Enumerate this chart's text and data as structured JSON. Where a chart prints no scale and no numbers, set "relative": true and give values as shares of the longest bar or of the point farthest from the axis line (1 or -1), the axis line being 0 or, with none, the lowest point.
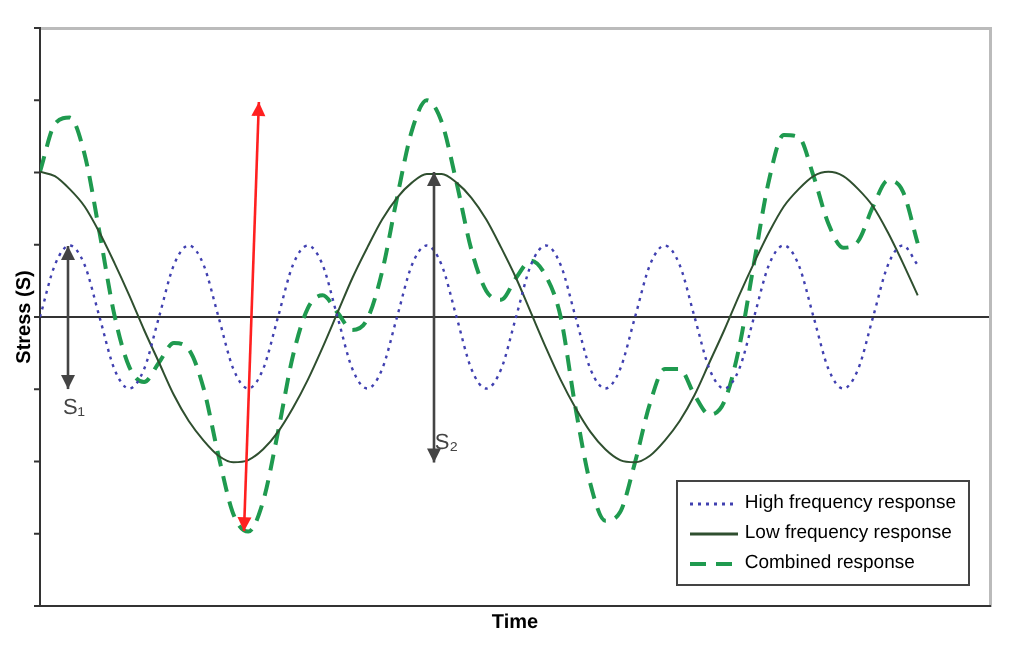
{
  "chart_data": {
    "type": "line",
    "relative": true,
    "xlabel": "Time",
    "ylabel": "Stress (S)",
    "categories": [
      null,
      null,
      null,
      null,
      null,
      null,
      null,
      null,
      null,
      null,
      null,
      null,
      null,
      null,
      null,
      null,
      null,
      null,
      null,
      null,
      null,
      null,
      null,
      null,
      null,
      null,
      null,
      null,
      null,
      null,
      null,
      null,
      null,
      null,
      null,
      null,
      null,
      null,
      null,
      null,
      null,
      null,
      null,
      null,
      null,
      null,
      null,
      null,
      null,
      null,
      null,
      null,
      null,
      null,
      null,
      null,
      null,
      null,
      null,
      null
    ],
    "series": [
      {
        "name": "High frequency response",
        "color": "#4040b0",
        "line_style": "dotted",
        "values": [
          0,
          0.24,
          0.33,
          0.24,
          0,
          -0.24,
          -0.33,
          -0.24,
          0,
          0.24,
          0.33,
          0.24,
          0,
          -0.24,
          -0.33,
          -0.24,
          0,
          0.24,
          0.33,
          0.24,
          0,
          -0.24,
          -0.33,
          -0.24,
          0,
          0.24,
          0.33,
          0.24,
          0,
          -0.24,
          -0.33,
          -0.24,
          0,
          0.24,
          0.33,
          0.24,
          0,
          -0.24,
          -0.33,
          -0.24,
          0,
          0.24,
          0.33,
          0.24,
          0,
          -0.24,
          -0.33,
          -0.24,
          0,
          0.24,
          0.33,
          0.24,
          0,
          -0.24,
          -0.33,
          -0.24,
          0,
          0.24,
          0.33,
          0.24
        ]
      },
      {
        "name": "Low frequency response",
        "color": "#2f4f2f",
        "line_style": "solid",
        "values": [
          0.67,
          0.65,
          0.59,
          0.51,
          0.39,
          0.25,
          0.1,
          -0.06,
          -0.21,
          -0.36,
          -0.48,
          -0.57,
          -0.64,
          -0.67,
          -0.66,
          -0.61,
          -0.53,
          -0.42,
          -0.29,
          -0.14,
          0.02,
          0.18,
          0.32,
          0.45,
          0.55,
          0.62,
          0.66,
          0.66,
          0.62,
          0.55,
          0.45,
          0.32,
          0.18,
          0.02,
          -0.14,
          -0.29,
          -0.42,
          -0.53,
          -0.61,
          -0.66,
          -0.67,
          -0.64,
          -0.57,
          -0.48,
          -0.36,
          -0.21,
          -0.06,
          0.1,
          0.25,
          0.39,
          0.51,
          0.59,
          0.65,
          0.67,
          0.65,
          0.59,
          0.51,
          0.39,
          0.25,
          0.1
        ]
      },
      {
        "name": "Combined response",
        "color": "#1f9a4f",
        "line_style": "dashed",
        "values": [
          0.67,
          0.89,
          0.92,
          0.75,
          0.39,
          0.01,
          -0.23,
          -0.3,
          -0.21,
          -0.12,
          -0.15,
          -0.33,
          -0.64,
          -0.91,
          -0.99,
          -0.85,
          -0.53,
          -0.18,
          0.04,
          0.1,
          0.02,
          -0.06,
          -0.01,
          0.21,
          0.55,
          0.86,
          1,
          0.9,
          0.62,
          0.31,
          0.12,
          0.08,
          0.18,
          0.26,
          0.19,
          0,
          -0.42,
          -0.77,
          -0.94,
          -0.9,
          -0.67,
          -0.4,
          -0.24,
          -0.24,
          -0.36,
          -0.45,
          -0.39,
          -0.14,
          0.25,
          0.63,
          0.84,
          0.83,
          0.65,
          0.43,
          0.32,
          0.35,
          0.51,
          0.63,
          0.58,
          0.34
        ]
      }
    ],
    "annotations": [
      "S₁",
      "S₂"
    ],
    "legend": "bottom right",
    "marker": "none",
    "grid": false
  }
}
